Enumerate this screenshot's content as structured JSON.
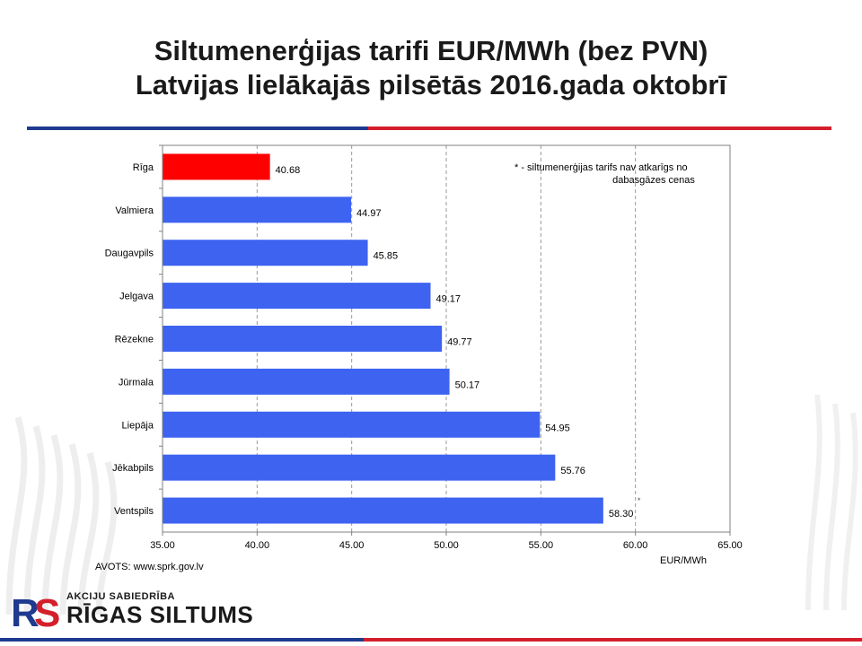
{
  "title": {
    "line1": "Siltumenerģijas tarifi EUR/MWh (bez PVN)",
    "line2": "Latvijas lielākajās pilsētās 2016.gada oktobrī"
  },
  "colors": {
    "accent_blue": "#3d63f0",
    "accent_red": "#ff0000",
    "rule_blue": "#1f3a8f",
    "rule_red": "#d41f2b",
    "grid": "#999999"
  },
  "source": "AVOTS: www.sprk.gov.lv",
  "logo": {
    "subtitle": "AKCIJU SABIEDRĪBA",
    "name": "RĪGAS SILTUMS"
  },
  "chart_data": {
    "type": "bar",
    "orientation": "horizontal",
    "categories": [
      "Rīga",
      "Valmiera",
      "Daugavpils",
      "Jelgava",
      "Rēzekne",
      "Jūrmala",
      "Liepāja",
      "Jēkabpils",
      "Ventspils"
    ],
    "values": [
      40.68,
      44.97,
      45.85,
      49.17,
      49.77,
      50.17,
      54.95,
      55.76,
      58.3
    ],
    "value_labels": [
      "40.68",
      "44.97",
      "45.85",
      "49.17",
      "49.77",
      "50.17",
      "54.95",
      "55.76",
      "58.30"
    ],
    "bar_colors": [
      "#ff0000",
      "#3d63f0",
      "#3d63f0",
      "#3d63f0",
      "#3d63f0",
      "#3d63f0",
      "#3d63f0",
      "#3d63f0",
      "#3d63f0"
    ],
    "xlabel": "EUR/MWh",
    "xlim": [
      35.0,
      65.0
    ],
    "x_ticks": [
      "35.00",
      "40.00",
      "45.00",
      "50.00",
      "55.00",
      "60.00",
      "65.00"
    ],
    "x_tick_values": [
      35,
      40,
      45,
      50,
      55,
      60,
      65
    ],
    "grid": "vertical dashed",
    "annotation": {
      "line1": "* - siltumenerģijas tarifs nav atkarīgs no",
      "line2": "dabasgāzes cenas"
    },
    "asterisk": {
      "category": "Ventspils",
      "mark": "*"
    }
  }
}
